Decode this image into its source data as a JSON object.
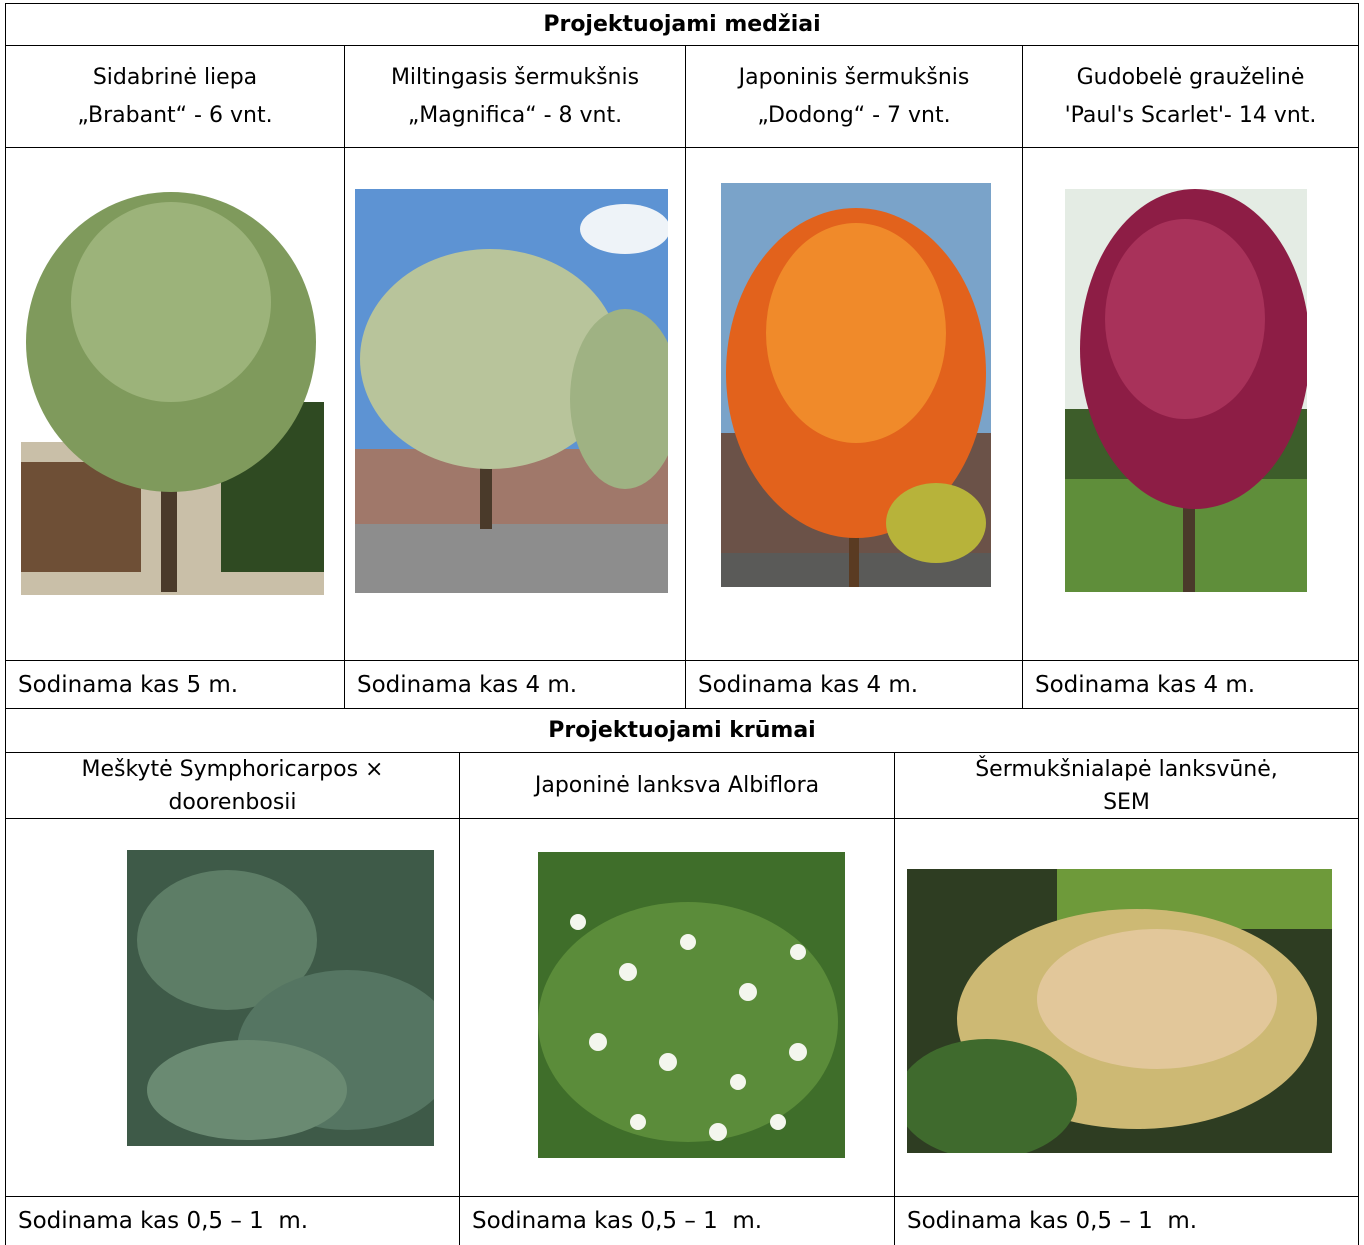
{
  "trees": {
    "title": "Projektuojami medžiai",
    "items": [
      {
        "name": [
          "Sidabrinė liepa",
          "„Brabant“ - 6 vnt."
        ],
        "spacing": "Sodinama kas 5 m."
      },
      {
        "name": [
          "Miltingasis šermukšnis",
          "„Magnifica“ - 8 vnt."
        ],
        "spacing": "Sodinama kas 4 m."
      },
      {
        "name": [
          "Japoninis šermukšnis",
          "„Dodong“ - 7 vnt."
        ],
        "spacing": "Sodinama kas 4 m."
      },
      {
        "name": [
          "Gudobelė grauželinė",
          "'Paul's Scarlet'- 14 vnt."
        ],
        "spacing": "Sodinama kas 4 m."
      }
    ]
  },
  "shrubs": {
    "title": "Projektuojami krūmai",
    "items": [
      {
        "name": [
          "Meškytė Symphoricarpos ×",
          "doorenbosii"
        ],
        "spacing": "Sodinama kas 0,5 – 1  m."
      },
      {
        "name": [
          "Japoninė lanksva Albiflora"
        ],
        "spacing": "Sodinama kas 0,5 – 1  m."
      },
      {
        "name": [
          "Šermukšnialapė lanksvūnė,",
          "SEM"
        ],
        "spacing": "Sodinama kas 0,5 – 1  m."
      }
    ]
  }
}
